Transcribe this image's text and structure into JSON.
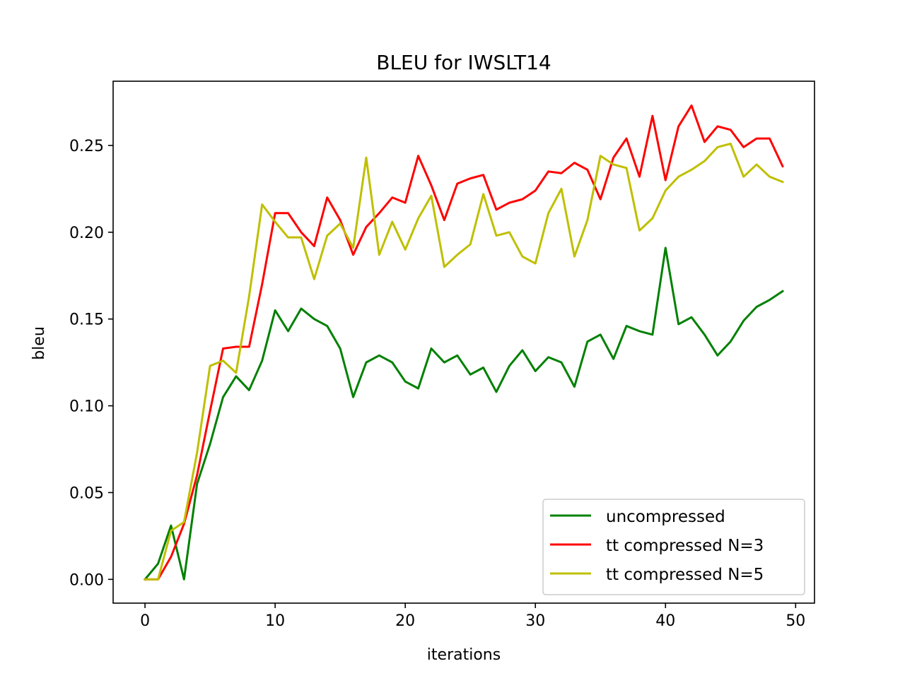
{
  "chart_data": {
    "type": "line",
    "title": "BLEU for IWSLT14",
    "xlabel": "iterations",
    "ylabel": "bleu",
    "xlim": [
      -2.45,
      51.45
    ],
    "ylim": [
      -0.0137,
      0.287
    ],
    "xticks": [
      0,
      10,
      20,
      30,
      40,
      50
    ],
    "xtick_labels": [
      "0",
      "10",
      "20",
      "30",
      "40",
      "50"
    ],
    "yticks": [
      0.0,
      0.05,
      0.1,
      0.15,
      0.2,
      0.25
    ],
    "ytick_labels": [
      "0.00",
      "0.05",
      "0.10",
      "0.15",
      "0.20",
      "0.25"
    ],
    "grid": false,
    "legend_position": "lower-right",
    "x": [
      0,
      1,
      2,
      3,
      4,
      5,
      6,
      7,
      8,
      9,
      10,
      11,
      12,
      13,
      14,
      15,
      16,
      17,
      18,
      19,
      20,
      21,
      22,
      23,
      24,
      25,
      26,
      27,
      28,
      29,
      30,
      31,
      32,
      33,
      34,
      35,
      36,
      37,
      38,
      39,
      40,
      41,
      42,
      43,
      44,
      45,
      46,
      47,
      48,
      49
    ],
    "series": [
      {
        "name": "uncompressed",
        "color": "#008000",
        "values": [
          0.0,
          0.009,
          0.031,
          0.0,
          0.055,
          0.078,
          0.105,
          0.117,
          0.109,
          0.126,
          0.155,
          0.143,
          0.156,
          0.15,
          0.146,
          0.133,
          0.105,
          0.125,
          0.129,
          0.125,
          0.114,
          0.11,
          0.133,
          0.125,
          0.129,
          0.118,
          0.122,
          0.108,
          0.123,
          0.132,
          0.12,
          0.128,
          0.125,
          0.111,
          0.137,
          0.141,
          0.127,
          0.146,
          0.143,
          0.141,
          0.191,
          0.147,
          0.151,
          0.141,
          0.129,
          0.137,
          0.149,
          0.157,
          0.161,
          0.166
        ]
      },
      {
        "name": "tt compressed N=3",
        "color": "#ff0000",
        "values": [
          0.0,
          0.0,
          0.013,
          0.032,
          0.06,
          0.097,
          0.133,
          0.134,
          0.134,
          0.17,
          0.211,
          0.211,
          0.2,
          0.192,
          0.22,
          0.207,
          0.187,
          0.203,
          0.211,
          0.22,
          0.217,
          0.244,
          0.227,
          0.207,
          0.228,
          0.231,
          0.233,
          0.213,
          0.217,
          0.219,
          0.224,
          0.235,
          0.234,
          0.24,
          0.236,
          0.219,
          0.243,
          0.254,
          0.232,
          0.267,
          0.23,
          0.261,
          0.273,
          0.252,
          0.261,
          0.259,
          0.249,
          0.254,
          0.254,
          0.238
        ]
      },
      {
        "name": "tt compressed N=5",
        "color": "#bfbf00",
        "values": [
          0.0,
          0.0,
          0.028,
          0.033,
          0.073,
          0.123,
          0.126,
          0.119,
          0.163,
          0.216,
          0.206,
          0.197,
          0.197,
          0.173,
          0.198,
          0.205,
          0.191,
          0.243,
          0.187,
          0.206,
          0.19,
          0.208,
          0.221,
          0.18,
          0.187,
          0.193,
          0.222,
          0.198,
          0.2,
          0.186,
          0.182,
          0.211,
          0.225,
          0.186,
          0.207,
          0.244,
          0.239,
          0.237,
          0.201,
          0.208,
          0.224,
          0.232,
          0.236,
          0.241,
          0.249,
          0.251,
          0.232,
          0.239,
          0.232,
          0.229
        ]
      }
    ]
  }
}
